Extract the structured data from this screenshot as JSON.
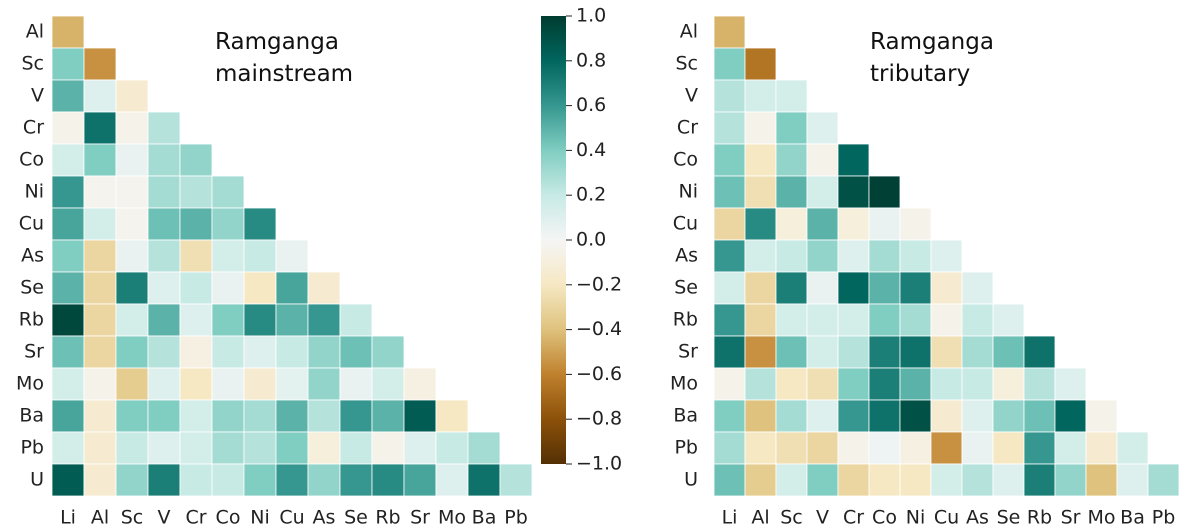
{
  "chart_data": [
    {
      "type": "heatmap",
      "title": "Ramganga mainstream",
      "rows": [
        "Al",
        "Sc",
        "V",
        "Cr",
        "Co",
        "Ni",
        "Cu",
        "As",
        "Se",
        "Rb",
        "Sr",
        "Mo",
        "Ba",
        "Pb",
        "U"
      ],
      "columns": [
        "Li",
        "Al",
        "Sc",
        "V",
        "Cr",
        "Co",
        "Ni",
        "Cu",
        "As",
        "Se",
        "Rb",
        "Sr",
        "Mo",
        "Ba",
        "Pb"
      ],
      "values": [
        [
          -0.45
        ],
        [
          0.4,
          -0.55
        ],
        [
          0.5,
          0.1,
          -0.15
        ],
        [
          -0.05,
          0.75,
          -0.05,
          0.25
        ],
        [
          0.15,
          0.4,
          0.05,
          0.3,
          0.35
        ],
        [
          0.6,
          -0.03,
          -0.03,
          0.3,
          0.25,
          0.3
        ],
        [
          0.55,
          0.15,
          -0.03,
          0.45,
          0.5,
          0.35,
          0.65
        ],
        [
          0.4,
          -0.3,
          0.05,
          0.25,
          -0.25,
          0.15,
          0.2,
          0.05
        ],
        [
          0.5,
          -0.3,
          0.7,
          0.1,
          0.2,
          0.05,
          -0.2,
          0.55,
          -0.15
        ],
        [
          0.95,
          -0.3,
          0.15,
          0.5,
          0.1,
          0.4,
          0.65,
          0.5,
          0.6,
          0.2
        ],
        [
          0.45,
          -0.3,
          0.4,
          0.25,
          -0.08,
          0.2,
          0.1,
          0.2,
          0.35,
          0.45,
          0.35
        ],
        [
          0.15,
          -0.05,
          -0.35,
          0.1,
          -0.2,
          0.05,
          -0.15,
          0.08,
          0.35,
          0.05,
          0.15,
          -0.08
        ],
        [
          0.55,
          -0.15,
          0.4,
          0.4,
          0.15,
          0.35,
          0.3,
          0.5,
          0.25,
          0.6,
          0.5,
          0.85,
          -0.2
        ],
        [
          0.15,
          -0.15,
          0.2,
          0.1,
          0.15,
          0.3,
          0.25,
          0.4,
          -0.1,
          0.2,
          -0.05,
          0.1,
          0.2,
          0.3
        ],
        [
          0.85,
          -0.15,
          0.35,
          0.7,
          0.2,
          0.2,
          0.4,
          0.6,
          0.35,
          0.6,
          0.65,
          0.55,
          0.1,
          0.75,
          0.25
        ]
      ]
    },
    {
      "type": "heatmap",
      "title": "Ramganga tributary",
      "rows": [
        "Al",
        "Sc",
        "V",
        "Cr",
        "Co",
        "Ni",
        "Cu",
        "As",
        "Se",
        "Rb",
        "Sr",
        "Mo",
        "Ba",
        "Pb",
        "U"
      ],
      "columns": [
        "Li",
        "Al",
        "Sc",
        "V",
        "Cr",
        "Co",
        "Ni",
        "Cu",
        "As",
        "Se",
        "Rb",
        "Sr",
        "Mo",
        "Ba",
        "Pb"
      ],
      "values": [
        [
          -0.45
        ],
        [
          0.4,
          -0.65
        ],
        [
          0.25,
          0.15,
          0.15
        ],
        [
          0.25,
          -0.05,
          0.4,
          0.1
        ],
        [
          0.4,
          -0.2,
          0.35,
          -0.05,
          0.8
        ],
        [
          0.45,
          -0.25,
          0.5,
          0.15,
          0.9,
          0.98
        ],
        [
          -0.3,
          0.65,
          -0.1,
          0.5,
          -0.1,
          0.05,
          -0.05
        ],
        [
          0.6,
          0.15,
          0.2,
          0.35,
          0.1,
          0.3,
          0.2,
          0.1
        ],
        [
          0.15,
          -0.3,
          0.7,
          0.05,
          0.8,
          0.5,
          0.7,
          -0.15,
          0.1
        ],
        [
          0.6,
          -0.3,
          0.15,
          0.15,
          0.15,
          0.4,
          0.3,
          -0.05,
          0.2,
          0.1
        ],
        [
          0.75,
          -0.55,
          0.45,
          0.15,
          0.25,
          0.7,
          0.75,
          -0.25,
          0.3,
          0.45,
          0.75
        ],
        [
          -0.05,
          0.25,
          -0.2,
          -0.25,
          0.4,
          0.7,
          0.5,
          0.2,
          0.2,
          -0.1,
          0.25,
          0.1
        ],
        [
          0.4,
          -0.4,
          0.3,
          0.1,
          0.6,
          0.75,
          0.9,
          -0.15,
          0.1,
          0.35,
          0.45,
          0.8,
          -0.05
        ],
        [
          0.3,
          -0.2,
          -0.25,
          -0.3,
          -0.05,
          0.03,
          -0.08,
          -0.55,
          0.05,
          -0.2,
          0.6,
          0.15,
          -0.15,
          0.15
        ],
        [
          0.45,
          -0.35,
          0.15,
          0.4,
          -0.3,
          -0.2,
          -0.2,
          0.15,
          0.25,
          0.1,
          0.7,
          0.35,
          -0.4,
          0.1,
          0.3
        ]
      ]
    }
  ],
  "colorbar": {
    "ylim": [
      -1,
      1
    ],
    "yticks": [
      {
        "value": 1,
        "label": "1.0"
      },
      0.8,
      0.6,
      0.4,
      0.2,
      {
        "value": 0,
        "label": "0.0"
      },
      {
        "value": -0.2,
        "label": "−0.2"
      },
      {
        "value": -0.4,
        "label": "−0.4"
      },
      {
        "value": -0.6,
        "label": "−0.6"
      },
      {
        "value": -0.8,
        "label": "−0.8"
      },
      {
        "value": -1,
        "label": "−1.0"
      }
    ],
    "colorscale": [
      "#543005",
      "#8c510a",
      "#bf812d",
      "#dfc27d",
      "#f6e8c3",
      "#f5f5f5",
      "#c7eae5",
      "#80cdc1",
      "#35978f",
      "#01665e",
      "#003c30"
    ]
  }
}
